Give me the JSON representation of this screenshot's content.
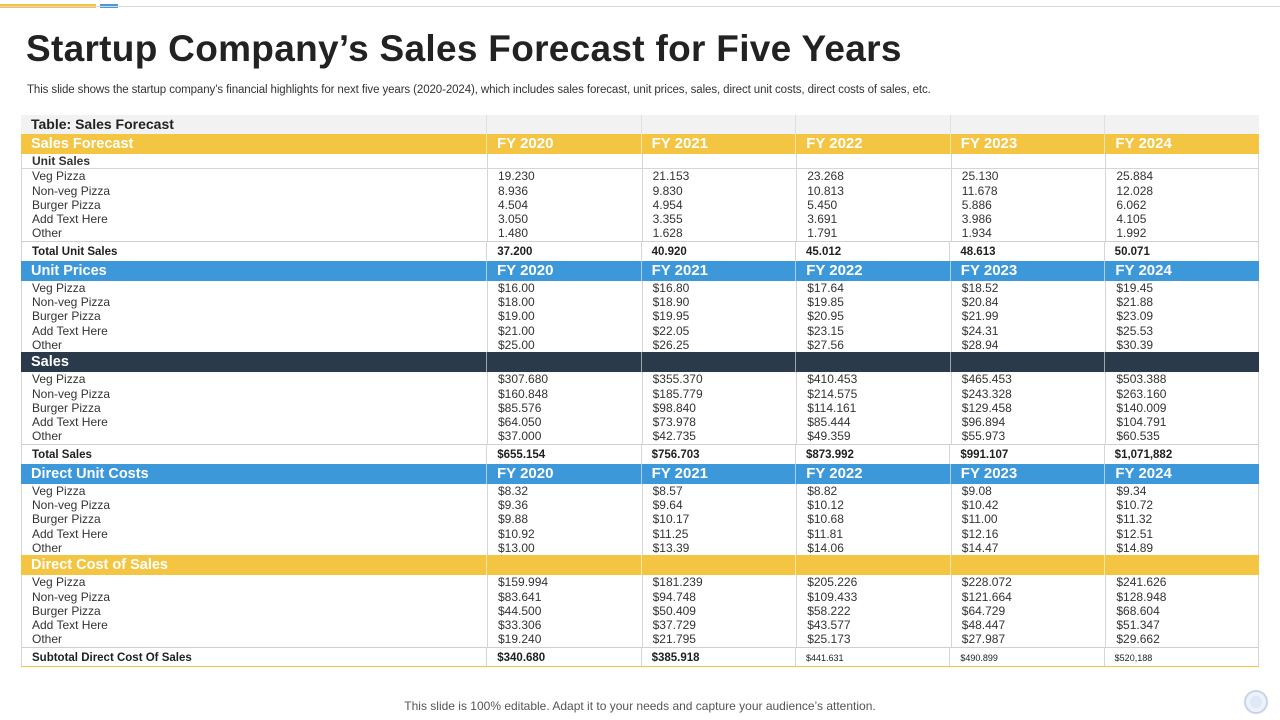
{
  "slide": {
    "title": "Startup Company’s Sales Forecast for Five Years",
    "subtitle": "This slide shows the startup company’s financial highlights for next five years (2020-2024), which includes sales forecast, unit prices, sales, direct unit costs, direct costs of sales, etc.",
    "footer": "This slide is 100% editable. Adapt it to your needs and capture your audience’s attention."
  },
  "colors": {
    "yellow": "#f4c542",
    "blue": "#3d98da",
    "dark": "#2b3a4a"
  },
  "table": {
    "caption": "Table: Sales Forecast",
    "years": [
      "FY 2020",
      "FY 2021",
      "FY 2022",
      "FY 2023",
      "FY 2024"
    ],
    "sales_forecast": {
      "label": "Sales Forecast",
      "unit_sales_label": "Unit Sales",
      "rows": [
        {
          "label": "Veg Pizza",
          "values": [
            "19.230",
            "21.153",
            "23.268",
            "25.130",
            "25.884"
          ]
        },
        {
          "label": "Non-veg Pizza",
          "values": [
            "8.936",
            "9.830",
            "10.813",
            "11.678",
            "12.028"
          ]
        },
        {
          "label": "Burger Pizza",
          "values": [
            "4.504",
            "4.954",
            "5.450",
            "5.886",
            "6.062"
          ]
        },
        {
          "label": "Add Text Here",
          "values": [
            "3.050",
            "3.355",
            "3.691",
            "3.986",
            "4.105"
          ]
        },
        {
          "label": "Other",
          "values": [
            "1.480",
            "1.628",
            "1.791",
            "1.934",
            "1.992"
          ]
        }
      ],
      "total": {
        "label": "Total Unit Sales",
        "values": [
          "37.200",
          "40.920",
          "45.012",
          "48.613",
          "50.071"
        ]
      }
    },
    "unit_prices": {
      "label": "Unit Prices",
      "rows": [
        {
          "label": "Veg Pizza",
          "values": [
            "$16.00",
            "$16.80",
            "$17.64",
            "$18.52",
            "$19.45"
          ]
        },
        {
          "label": "Non-veg Pizza",
          "values": [
            "$18.00",
            "$18.90",
            "$19.85",
            "$20.84",
            "$21.88"
          ]
        },
        {
          "label": "Burger Pizza",
          "values": [
            "$19.00",
            "$19.95",
            "$20.95",
            "$21.99",
            "$23.09"
          ]
        },
        {
          "label": "Add Text Here",
          "values": [
            "$21.00",
            "$22.05",
            "$23.15",
            "$24.31",
            "$25.53"
          ]
        },
        {
          "label": "Other",
          "values": [
            "$25.00",
            "$26.25",
            "$27.56",
            "$28.94",
            "$30.39"
          ]
        }
      ]
    },
    "sales": {
      "label": "Sales",
      "rows": [
        {
          "label": "Veg Pizza",
          "values": [
            "$307.680",
            "$355.370",
            "$410.453",
            "$465.453",
            "$503.388"
          ]
        },
        {
          "label": "Non-veg Pizza",
          "values": [
            "$160.848",
            "$185.779",
            "$214.575",
            "$243.328",
            "$263.160"
          ]
        },
        {
          "label": "Burger Pizza",
          "values": [
            "$85.576",
            "$98.840",
            "$114.161",
            "$129.458",
            "$140.009"
          ]
        },
        {
          "label": "Add Text Here",
          "values": [
            "$64.050",
            "$73.978",
            "$85.444",
            "$96.894",
            "$104.791"
          ]
        },
        {
          "label": "Other",
          "values": [
            "$37.000",
            "$42.735",
            "$49.359",
            "$55.973",
            "$60.535"
          ]
        }
      ],
      "total": {
        "label": "Total Sales",
        "values": [
          "$655.154",
          "$756.703",
          "$873.992",
          "$991.107",
          "$1,071,882"
        ]
      }
    },
    "direct_unit_costs": {
      "label": "Direct Unit Costs",
      "rows": [
        {
          "label": "Veg Pizza",
          "values": [
            "$8.32",
            "$8.57",
            "$8.82",
            "$9.08",
            "$9.34"
          ]
        },
        {
          "label": "Non-veg Pizza",
          "values": [
            "$9.36",
            "$9.64",
            "$10.12",
            "$10.42",
            "$10.72"
          ]
        },
        {
          "label": "Burger Pizza",
          "values": [
            "$9.88",
            "$10.17",
            "$10.68",
            "$11.00",
            "$11.32"
          ]
        },
        {
          "label": "Add Text Here",
          "values": [
            "$10.92",
            "$11.25",
            "$11.81",
            "$12.16",
            "$12.51"
          ]
        },
        {
          "label": "Other",
          "values": [
            "$13.00",
            "$13.39",
            "$14.06",
            "$14.47",
            "$14.89"
          ]
        }
      ]
    },
    "direct_cost_of_sales": {
      "label": "Direct Cost of Sales",
      "rows": [
        {
          "label": "Veg Pizza",
          "values": [
            "$159.994",
            "$181.239",
            "$205.226",
            "$228.072",
            "$241.626"
          ]
        },
        {
          "label": "Non-veg Pizza",
          "values": [
            "$83.641",
            "$94.748",
            "$109.433",
            "$121.664",
            "$128.948"
          ]
        },
        {
          "label": "Burger Pizza",
          "values": [
            "$44.500",
            "$50.409",
            "$58.222",
            "$64.729",
            "$68.604"
          ]
        },
        {
          "label": "Add Text Here",
          "values": [
            "$33.306",
            "$37.729",
            "$43.577",
            "$48.447",
            "$51.347"
          ]
        },
        {
          "label": "Other",
          "values": [
            "$19.240",
            "$21.795",
            "$25.173",
            "$27.987",
            "$29.662"
          ]
        }
      ],
      "total": {
        "label": "Subtotal Direct Cost Of Sales",
        "values": [
          "$340.680",
          "$385.918",
          "$441.631",
          "$490.899",
          "$520,188"
        ]
      }
    }
  }
}
